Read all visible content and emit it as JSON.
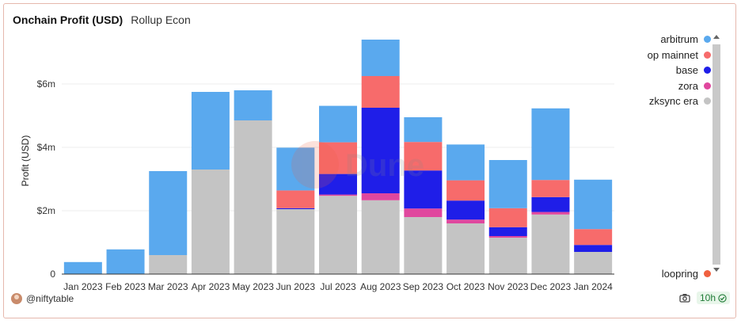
{
  "header": {
    "title": "Onchain Profit (USD)",
    "subtitle": "Rollup Econ"
  },
  "footer": {
    "author": "@niftytable",
    "refresh": "10h"
  },
  "watermark": "Dune",
  "chart_data": {
    "type": "bar",
    "stacked": true,
    "title": "Onchain Profit (USD)",
    "xlabel": "",
    "ylabel": "Profit (USD)",
    "ylim": [
      0,
      7500000
    ],
    "yticks": [
      0,
      2000000,
      4000000,
      6000000
    ],
    "ytick_labels": [
      "0",
      "$2m",
      "$4m",
      "$6m"
    ],
    "grid": true,
    "legend_position": "right",
    "categories": [
      "Jan 2023",
      "Feb 2023",
      "Mar 2023",
      "Apr 2023",
      "May 2023",
      "Jun 2023",
      "Jul 2023",
      "Aug 2023",
      "Sep 2023",
      "Oct 2023",
      "Nov 2023",
      "Dec 2023",
      "Jan 2024"
    ],
    "series": [
      {
        "name": "zksync era",
        "color": "#c4c4c4",
        "values": [
          0,
          0,
          600000,
          3300000,
          4850000,
          2050000,
          2470000,
          2330000,
          1800000,
          1600000,
          1150000,
          1880000,
          700000
        ]
      },
      {
        "name": "zora",
        "color": "#e0479e",
        "values": [
          0,
          0,
          0,
          0,
          0,
          0,
          40000,
          220000,
          270000,
          120000,
          50000,
          80000,
          0
        ]
      },
      {
        "name": "base",
        "color": "#1f1ee8",
        "values": [
          0,
          0,
          0,
          0,
          0,
          30000,
          650000,
          2700000,
          1200000,
          600000,
          280000,
          470000,
          220000
        ]
      },
      {
        "name": "op mainnet",
        "color": "#f76b6b",
        "values": [
          0,
          0,
          0,
          0,
          0,
          560000,
          1000000,
          1000000,
          900000,
          640000,
          600000,
          540000,
          500000
        ]
      },
      {
        "name": "arbitrum",
        "color": "#5aa9ee",
        "values": [
          380000,
          780000,
          2650000,
          2450000,
          950000,
          1350000,
          1150000,
          1150000,
          780000,
          1130000,
          1520000,
          2260000,
          1560000
        ]
      },
      {
        "name": "loopring",
        "color": "#f0603f",
        "values": [
          0,
          0,
          0,
          0,
          0,
          0,
          0,
          0,
          0,
          0,
          0,
          0,
          0
        ]
      }
    ]
  },
  "legend": {
    "items": [
      {
        "name": "arbitrum",
        "color": "#5aa9ee"
      },
      {
        "name": "op mainnet",
        "color": "#f76b6b"
      },
      {
        "name": "base",
        "color": "#1f1ee8"
      },
      {
        "name": "zora",
        "color": "#e0479e"
      },
      {
        "name": "zksync era",
        "color": "#c4c4c4"
      }
    ],
    "bottom_item": {
      "name": "loopring",
      "color": "#f0603f"
    }
  }
}
